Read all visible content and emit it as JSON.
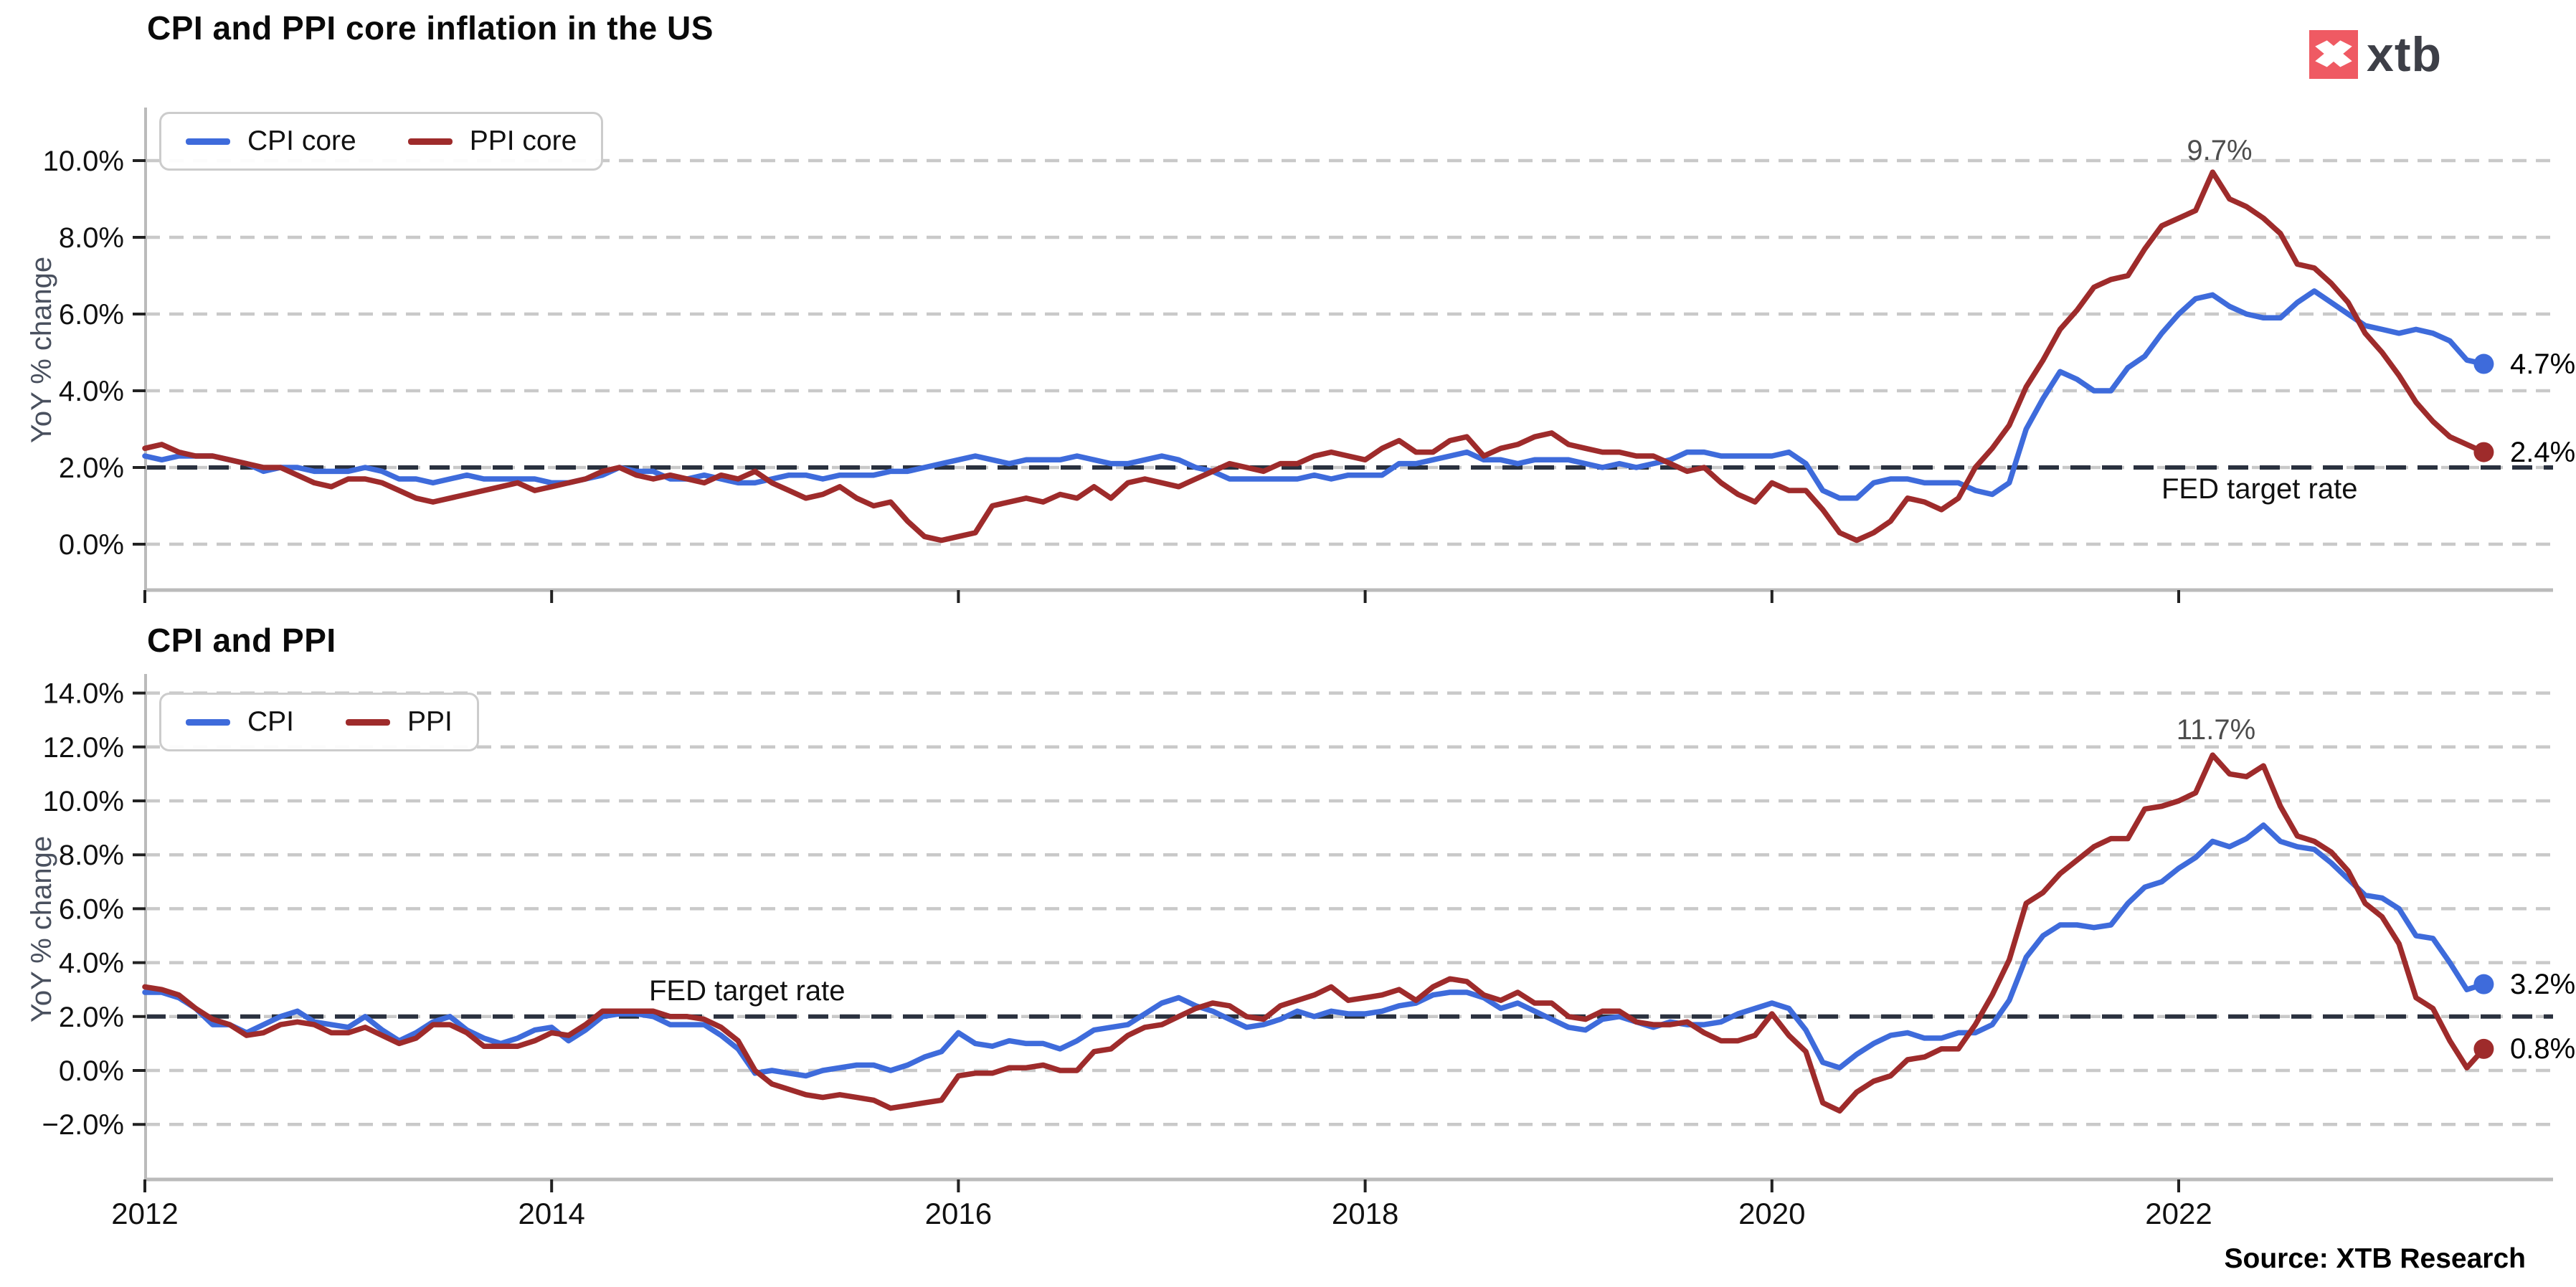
{
  "page": {
    "background": "#ffffff"
  },
  "logo": {
    "text": "xtb",
    "box_color": "#ef5a63",
    "text_color": "#3d3f47",
    "mark": "xtb-x-icon"
  },
  "source": {
    "label": "Source: XTB Research"
  },
  "colors": {
    "cpi_blue": "#3e6bdb",
    "ppi_red": "#9e2b2b",
    "gridline": "#c9c9c9",
    "fed_dash": "#2a313f",
    "spine": "#bbbbbb",
    "tick_label": "#111111",
    "annotation": "#4d4d4d",
    "axis_label": "#49505e"
  },
  "chart_data": [
    {
      "type": "line",
      "title": "CPI and PPI core inflation in the US",
      "ylabel": "YoY % change",
      "x_start": 2012,
      "freq_per_year": 12,
      "x_ticks": [
        {
          "value": 2012,
          "label": "2012"
        },
        {
          "value": 2014,
          "label": "2014"
        },
        {
          "value": 2016,
          "label": "2016"
        },
        {
          "value": 2018,
          "label": "2018"
        },
        {
          "value": 2020,
          "label": "2020"
        },
        {
          "value": 2022,
          "label": "2022"
        }
      ],
      "show_x_labels": false,
      "y_ticks": [
        {
          "value": 10,
          "label": "10.0%"
        },
        {
          "value": 8,
          "label": "8.0%"
        },
        {
          "value": 6,
          "label": "6.0%"
        },
        {
          "value": 4,
          "label": "4.0%"
        },
        {
          "value": 2,
          "label": "2.0%"
        },
        {
          "value": 0,
          "label": "0.0%"
        }
      ],
      "ylim": [
        -1.2,
        11.4
      ],
      "grid": "dashed-horizontal",
      "legend_position": "upper-left",
      "fed_line": {
        "value": 2.0,
        "label": "FED target rate"
      },
      "series": [
        {
          "name": "CPI core",
          "color": "#3e6bdb",
          "end_label": "4.7%",
          "values": [
            2.3,
            2.2,
            2.3,
            2.3,
            2.3,
            2.2,
            2.1,
            1.9,
            2.0,
            2.0,
            1.9,
            1.9,
            1.9,
            2.0,
            1.9,
            1.7,
            1.7,
            1.6,
            1.7,
            1.8,
            1.7,
            1.7,
            1.7,
            1.7,
            1.6,
            1.6,
            1.7,
            1.8,
            2.0,
            1.9,
            1.9,
            1.7,
            1.7,
            1.8,
            1.7,
            1.6,
            1.6,
            1.7,
            1.8,
            1.8,
            1.7,
            1.8,
            1.8,
            1.8,
            1.9,
            1.9,
            2.0,
            2.1,
            2.2,
            2.3,
            2.2,
            2.1,
            2.2,
            2.2,
            2.2,
            2.3,
            2.2,
            2.1,
            2.1,
            2.2,
            2.3,
            2.2,
            2.0,
            1.9,
            1.7,
            1.7,
            1.7,
            1.7,
            1.7,
            1.8,
            1.7,
            1.8,
            1.8,
            1.8,
            2.1,
            2.1,
            2.2,
            2.3,
            2.4,
            2.2,
            2.2,
            2.1,
            2.2,
            2.2,
            2.2,
            2.1,
            2.0,
            2.1,
            2.0,
            2.1,
            2.2,
            2.4,
            2.4,
            2.3,
            2.3,
            2.3,
            2.3,
            2.4,
            2.1,
            1.4,
            1.2,
            1.2,
            1.6,
            1.7,
            1.7,
            1.6,
            1.6,
            1.6,
            1.4,
            1.3,
            1.6,
            3.0,
            3.8,
            4.5,
            4.3,
            4.0,
            4.0,
            4.6,
            4.9,
            5.5,
            6.0,
            6.4,
            6.5,
            6.2,
            6.0,
            5.9,
            5.9,
            6.3,
            6.6,
            6.3,
            6.0,
            5.7,
            5.6,
            5.5,
            5.6,
            5.5,
            5.3,
            4.8,
            4.7
          ]
        },
        {
          "name": "PPI core",
          "color": "#9e2b2b",
          "end_label": "2.4%",
          "peak_annotation": {
            "label": "9.7%",
            "month_index": 122
          },
          "values": [
            2.5,
            2.6,
            2.4,
            2.3,
            2.3,
            2.2,
            2.1,
            2.0,
            2.0,
            1.8,
            1.6,
            1.5,
            1.7,
            1.7,
            1.6,
            1.4,
            1.2,
            1.1,
            1.2,
            1.3,
            1.4,
            1.5,
            1.6,
            1.4,
            1.5,
            1.6,
            1.7,
            1.9,
            2.0,
            1.8,
            1.7,
            1.8,
            1.7,
            1.6,
            1.8,
            1.7,
            1.9,
            1.6,
            1.4,
            1.2,
            1.3,
            1.5,
            1.2,
            1.0,
            1.1,
            0.6,
            0.2,
            0.1,
            0.2,
            0.3,
            1.0,
            1.1,
            1.2,
            1.1,
            1.3,
            1.2,
            1.5,
            1.2,
            1.6,
            1.7,
            1.6,
            1.5,
            1.7,
            1.9,
            2.1,
            2.0,
            1.9,
            2.1,
            2.1,
            2.3,
            2.4,
            2.3,
            2.2,
            2.5,
            2.7,
            2.4,
            2.4,
            2.7,
            2.8,
            2.3,
            2.5,
            2.6,
            2.8,
            2.9,
            2.6,
            2.5,
            2.4,
            2.4,
            2.3,
            2.3,
            2.1,
            1.9,
            2.0,
            1.6,
            1.3,
            1.1,
            1.6,
            1.4,
            1.4,
            0.9,
            0.3,
            0.1,
            0.3,
            0.6,
            1.2,
            1.1,
            0.9,
            1.2,
            2.0,
            2.5,
            3.1,
            4.1,
            4.8,
            5.6,
            6.1,
            6.7,
            6.9,
            7.0,
            7.7,
            8.3,
            8.5,
            8.7,
            9.7,
            9.0,
            8.8,
            8.5,
            8.1,
            7.3,
            7.2,
            6.8,
            6.3,
            5.5,
            5.0,
            4.4,
            3.7,
            3.2,
            2.8,
            2.6,
            2.4
          ]
        }
      ]
    },
    {
      "type": "line",
      "title": "CPI and PPI",
      "ylabel": "YoY % change",
      "x_start": 2012,
      "freq_per_year": 12,
      "x_ticks": [
        {
          "value": 2012,
          "label": "2012"
        },
        {
          "value": 2014,
          "label": "2014"
        },
        {
          "value": 2016,
          "label": "2016"
        },
        {
          "value": 2018,
          "label": "2018"
        },
        {
          "value": 2020,
          "label": "2020"
        },
        {
          "value": 2022,
          "label": "2022"
        }
      ],
      "show_x_labels": true,
      "y_ticks": [
        {
          "value": 14,
          "label": "14.0%"
        },
        {
          "value": 12,
          "label": "12.0%"
        },
        {
          "value": 10,
          "label": "10.0%"
        },
        {
          "value": 8,
          "label": "8.0%"
        },
        {
          "value": 6,
          "label": "6.0%"
        },
        {
          "value": 4,
          "label": "4.0%"
        },
        {
          "value": 2,
          "label": "2.0%"
        },
        {
          "value": 0,
          "label": "0.0%"
        },
        {
          "value": -2,
          "label": "−2.0%"
        }
      ],
      "ylim": [
        -3.4,
        14.7
      ],
      "grid": "dashed-horizontal",
      "legend_position": "upper-left",
      "fed_line": {
        "value": 2.0,
        "label": "FED target rate"
      },
      "series": [
        {
          "name": "CPI",
          "color": "#3e6bdb",
          "end_label": "3.2%",
          "values": [
            2.9,
            2.9,
            2.7,
            2.3,
            1.7,
            1.7,
            1.4,
            1.7,
            2.0,
            2.2,
            1.8,
            1.7,
            1.6,
            2.0,
            1.5,
            1.1,
            1.4,
            1.8,
            2.0,
            1.5,
            1.2,
            1.0,
            1.2,
            1.5,
            1.6,
            1.1,
            1.5,
            2.0,
            2.1,
            2.1,
            2.0,
            1.7,
            1.7,
            1.7,
            1.3,
            0.8,
            -0.1,
            0.0,
            -0.1,
            -0.2,
            0.0,
            0.1,
            0.2,
            0.2,
            0.0,
            0.2,
            0.5,
            0.7,
            1.4,
            1.0,
            0.9,
            1.1,
            1.0,
            1.0,
            0.8,
            1.1,
            1.5,
            1.6,
            1.7,
            2.1,
            2.5,
            2.7,
            2.4,
            2.2,
            1.9,
            1.6,
            1.7,
            1.9,
            2.2,
            2.0,
            2.2,
            2.1,
            2.1,
            2.2,
            2.4,
            2.5,
            2.8,
            2.9,
            2.9,
            2.7,
            2.3,
            2.5,
            2.2,
            1.9,
            1.6,
            1.5,
            1.9,
            2.0,
            1.8,
            1.6,
            1.8,
            1.7,
            1.7,
            1.8,
            2.1,
            2.3,
            2.5,
            2.3,
            1.5,
            0.3,
            0.1,
            0.6,
            1.0,
            1.3,
            1.4,
            1.2,
            1.2,
            1.4,
            1.4,
            1.7,
            2.6,
            4.2,
            5.0,
            5.4,
            5.4,
            5.3,
            5.4,
            6.2,
            6.8,
            7.0,
            7.5,
            7.9,
            8.5,
            8.3,
            8.6,
            9.1,
            8.5,
            8.3,
            8.2,
            7.7,
            7.1,
            6.5,
            6.4,
            6.0,
            5.0,
            4.9,
            4.0,
            3.0,
            3.2
          ]
        },
        {
          "name": "PPI",
          "color": "#9e2b2b",
          "end_label": "0.8%",
          "peak_annotation": {
            "label": "11.7%",
            "month_index": 122
          },
          "values": [
            3.1,
            3.0,
            2.8,
            2.3,
            1.9,
            1.7,
            1.3,
            1.4,
            1.7,
            1.8,
            1.7,
            1.4,
            1.4,
            1.6,
            1.3,
            1.0,
            1.2,
            1.7,
            1.7,
            1.4,
            0.9,
            0.9,
            0.9,
            1.1,
            1.4,
            1.3,
            1.7,
            2.2,
            2.2,
            2.2,
            2.2,
            2.0,
            2.0,
            1.9,
            1.6,
            1.1,
            0.0,
            -0.5,
            -0.7,
            -0.9,
            -1.0,
            -0.9,
            -1.0,
            -1.1,
            -1.4,
            -1.3,
            -1.2,
            -1.1,
            -0.2,
            -0.1,
            -0.1,
            0.1,
            0.1,
            0.2,
            0.0,
            0.0,
            0.7,
            0.8,
            1.3,
            1.6,
            1.7,
            2.0,
            2.3,
            2.5,
            2.4,
            2.0,
            1.9,
            2.4,
            2.6,
            2.8,
            3.1,
            2.6,
            2.7,
            2.8,
            3.0,
            2.6,
            3.1,
            3.4,
            3.3,
            2.8,
            2.6,
            2.9,
            2.5,
            2.5,
            2.0,
            1.9,
            2.2,
            2.2,
            1.8,
            1.7,
            1.7,
            1.8,
            1.4,
            1.1,
            1.1,
            1.3,
            2.1,
            1.3,
            0.7,
            -1.2,
            -1.5,
            -0.8,
            -0.4,
            -0.2,
            0.4,
            0.5,
            0.8,
            0.8,
            1.7,
            2.8,
            4.1,
            6.2,
            6.6,
            7.3,
            7.8,
            8.3,
            8.6,
            8.6,
            9.7,
            9.8,
            10.0,
            10.3,
            11.7,
            11.0,
            10.9,
            11.3,
            9.8,
            8.7,
            8.5,
            8.1,
            7.4,
            6.2,
            5.7,
            4.7,
            2.7,
            2.3,
            1.1,
            0.1,
            0.8
          ]
        }
      ]
    }
  ]
}
